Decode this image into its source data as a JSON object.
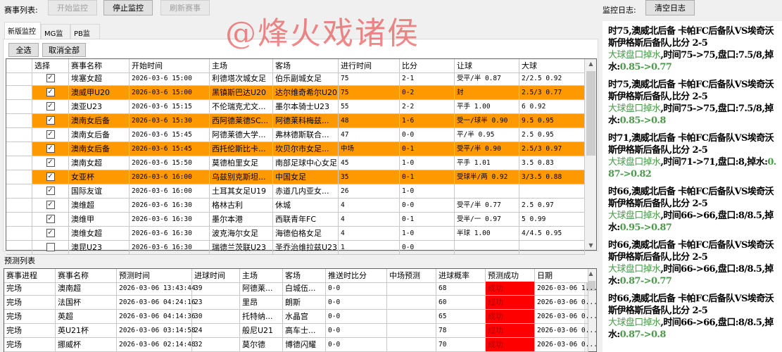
{
  "toolbar": {
    "match_list_label": "赛事列表:",
    "start_label": "开始监控",
    "stop_label": "停止监控",
    "refresh_label": "刷新赛事"
  },
  "watermark": "@烽火戏诸侯",
  "tabs": [
    {
      "label": "新版监控",
      "active": true
    },
    {
      "label": "MG监控"
    },
    {
      "label": "PB监控"
    }
  ],
  "actions": {
    "select_all": "全选",
    "deselect_all": "取消全部"
  },
  "match_table": {
    "columns": [
      "选择",
      "赛事名称",
      "开始时间",
      "主场",
      "客场",
      "进行时间",
      "比分",
      "让球",
      "大球"
    ],
    "rows": [
      {
        "checked": true,
        "highlight": false,
        "league": "埃塞女超",
        "start": "2026-03-6 15:00",
        "home": "利德塔次城女足",
        "away": "伯乐副城女足",
        "elapsed": "75",
        "score": "2-1",
        "handicap": "受平/半 0.87",
        "overunder": "2/2.5 0.92"
      },
      {
        "checked": true,
        "highlight": true,
        "league": "澳威甲U20",
        "start": "2026-03-6 15:00",
        "home": "黑镇斯巴达U20",
        "away": "达尔维奇希尔U20",
        "elapsed": "75",
        "score": "0-2",
        "handicap": "封",
        "overunder": "2.5/3 0.77"
      },
      {
        "checked": true,
        "highlight": false,
        "league": "澳亚U23",
        "start": "2026-03-6 15:15",
        "home": "不伦瑞克尤文...",
        "away": "墨尔本骑士U23",
        "elapsed": "55",
        "score": "2-2",
        "handicap": "平手 1.00",
        "overunder": "6 0.92"
      },
      {
        "checked": true,
        "highlight": true,
        "league": "澳南女后备",
        "start": "2026-03-6 15:30",
        "home": "西阿德莱德SC...",
        "away": "阿德莱科梅兹...",
        "elapsed": "48",
        "score": "1-6",
        "handicap": "受一/球半 0.90",
        "overunder": "9.5 0.95"
      },
      {
        "checked": true,
        "highlight": false,
        "league": "澳南女后备",
        "start": "2026-03-6 15:45",
        "home": "阿德莱德大学...",
        "away": "弗林德斯联合...",
        "elapsed": "47",
        "score": "0-0",
        "handicap": "平/半 0.95",
        "overunder": "2.5 0.95"
      },
      {
        "checked": true,
        "highlight": true,
        "league": "澳南女后备",
        "start": "2026-03-6 15:45",
        "home": "西托伦斯比卡...",
        "away": "坎贝尔市女足...",
        "elapsed": "中场",
        "score": "0-1",
        "handicap": "受平/半 0.90",
        "overunder": "2.5/3 0.97"
      },
      {
        "checked": true,
        "highlight": false,
        "league": "澳南女超",
        "start": "2026-03-6 15:50",
        "home": "莫德柏里女足",
        "away": "南部足球中心女足",
        "elapsed": "45",
        "score": "1-0",
        "handicap": "平手 1.01",
        "overunder": "3.5 0.83"
      },
      {
        "checked": true,
        "highlight": true,
        "league": "女亚杯",
        "start": "2026-03-6 16:00",
        "home": "乌兹别克斯坦...",
        "away": "中国女足",
        "elapsed": "35",
        "score": "0-1",
        "handicap": "受球半/两 0.92",
        "overunder": "3/3.5 0.88"
      },
      {
        "checked": true,
        "highlight": false,
        "league": "国际友谊",
        "start": "2026-03-6 16:00",
        "home": "土耳其女足U19",
        "away": "赤道几内亚女...",
        "elapsed": "26",
        "score": "1-0",
        "handicap": "",
        "overunder": ""
      },
      {
        "checked": true,
        "highlight": false,
        "league": "澳维超",
        "start": "2026-03-6 16:30",
        "home": "格林古利",
        "away": "休城",
        "elapsed": "4",
        "score": "0-0",
        "handicap": "受平/半 0.77",
        "overunder": "2.5 0.97"
      },
      {
        "checked": true,
        "highlight": false,
        "league": "澳维甲",
        "start": "2026-03-6 16:30",
        "home": "墨尔本港",
        "away": "西联青年FC",
        "elapsed": "4",
        "score": "0-1",
        "handicap": "受半/一 0.97",
        "overunder": "5 0.99"
      },
      {
        "checked": true,
        "highlight": false,
        "league": "澳维女超",
        "start": "2026-03-6 16:30",
        "home": "波克海尔女足",
        "away": "海德伯格女足",
        "elapsed": "4",
        "score": "1-0",
        "handicap": "半球 1.00",
        "overunder": "4/4.5 0.95"
      },
      {
        "checked": false,
        "highlight": false,
        "league": "澳昆U23",
        "start": "2026-03-6 16:30",
        "home": "瑞德兰茨联U23",
        "away": "圣乔治维拉兹U23",
        "elapsed": "1",
        "score": "0-0",
        "handicap": "",
        "overunder": ""
      }
    ]
  },
  "prediction_label": "预测列表",
  "prediction_table": {
    "columns": [
      "赛事进程",
      "赛事名称",
      "预测时间",
      "进球时间",
      "主场",
      "客场",
      "推送时比分",
      "中场预测",
      "进球概率",
      "预测成功",
      "日期"
    ],
    "rows": [
      [
        "完场",
        "澳南超",
        "2026-03-06 13:43:44",
        "39",
        "阿德莱...",
        "白城伍...",
        "0-0",
        "",
        "68",
        "成功",
        "2026-03-06 1..."
      ],
      [
        "完场",
        "法国杯",
        "2026-03-06 04:24:16",
        "23",
        "里昂",
        "朗斯",
        "0-0",
        "",
        "60",
        "成功",
        "2026-03-06 0..."
      ],
      [
        "完场",
        "英超",
        "2026-03-06 04:14:36",
        "30",
        "托特纳...",
        "水晶宫",
        "0-0",
        "",
        "65",
        "成功",
        "2026-03-06 0..."
      ],
      [
        "完场",
        "英U21杯",
        "2026-03-06 03:14:58",
        "24",
        "般尼U21",
        "高车士...",
        "0-0",
        "",
        "78",
        "成功",
        "2026-03-06 0..."
      ],
      [
        "完场",
        "挪威杯",
        "2026-03-06 02:14:48",
        "32",
        "莫尔德",
        "博德闪耀",
        "0-0",
        "",
        "70",
        "成功",
        "2026-03-06 0..."
      ]
    ]
  },
  "log": {
    "label": "监控日志:",
    "clear_label": "清空日志",
    "entries": [
      {
        "head": "时75,澳威北后备  卡帕FC后备队VS埃奇沃斯伊格斯后备队,比分  2-5",
        "alert": "大球盘口掉水",
        "detail": ",时间75->75,盘口:7.5/8,掉水:",
        "change": "0.85->0.77"
      },
      {
        "head": "时75,澳威北后备  卡帕FC后备队VS埃奇沃斯伊格斯后备队,比分  2-5",
        "alert": "大球盘口掉水",
        "detail": ",时间75->75,盘口:7.5/8,掉水:",
        "change": "0.85->0.8"
      },
      {
        "head": "时71,澳威北后备  卡帕FC后备队VS埃奇沃斯伊格斯后备队,比分  2-5",
        "alert": "大球盘口掉水",
        "detail": ",时间71->71,盘口:8,掉水:",
        "change": "0.87->0.82"
      },
      {
        "head": "时66,澳威北后备  卡帕FC后备队VS埃奇沃斯伊格斯后备队,比分  2-5",
        "alert": "大球盘口掉水",
        "detail": ",时间66->66,盘口:8/8.5,掉水:",
        "change": "0.95->0.87"
      },
      {
        "head": "时66,澳威北后备  卡帕FC后备队VS埃奇沃斯伊格斯后备队,比分  2-5",
        "alert": "大球盘口掉水",
        "detail": ",时间66->66,盘口:8/8.5,掉水:",
        "change": "0.87->0.77"
      },
      {
        "head": "时66,澳威北后备  卡帕FC后备队VS埃奇沃斯伊格斯后备队,比分  2-5",
        "alert": "大球盘口掉水",
        "detail": ",时间66->66,盘口:8/8.5,掉水:",
        "change": "0.87->0.8"
      }
    ]
  },
  "colors": {
    "highlight": "#ff9900",
    "success": "#ff0000",
    "log_green": "#4a9a4a"
  }
}
